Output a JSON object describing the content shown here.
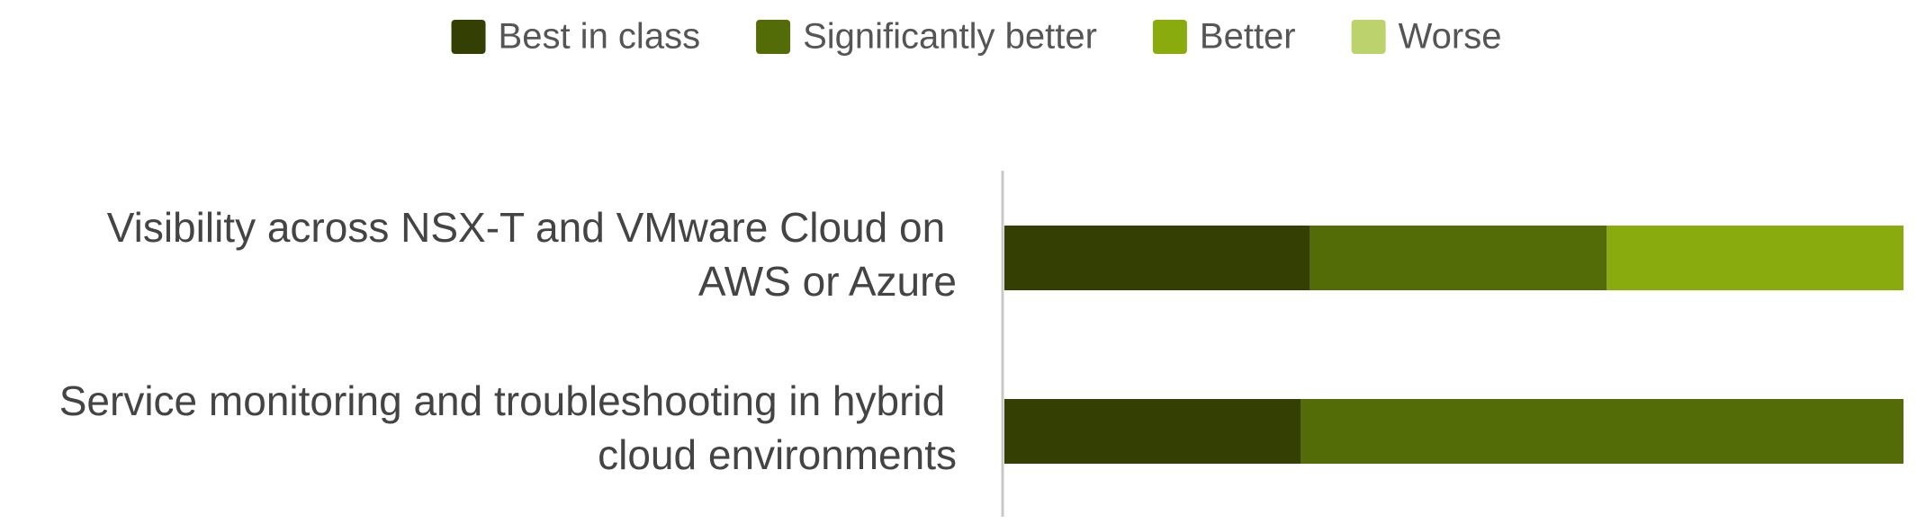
{
  "chart_data": {
    "type": "stacked-bar-horizontal",
    "categories": [
      "Visibility across NSX-T and VMware Cloud on AWS or Azure",
      "Service monitoring and troubleshooting in hybrid cloud environments"
    ],
    "series": [
      {
        "name": "Best in class",
        "color": "#344003",
        "values": [
          34,
          33
        ]
      },
      {
        "name": "Significantly better",
        "color": "#546c08",
        "values": [
          33,
          67
        ]
      },
      {
        "name": "Better",
        "color": "#8aab0e",
        "values": [
          33,
          0
        ]
      },
      {
        "name": "Worse",
        "color": "#bcd26c",
        "values": [
          0,
          0
        ]
      }
    ],
    "xlim": [
      0,
      100
    ],
    "legend": "top"
  }
}
